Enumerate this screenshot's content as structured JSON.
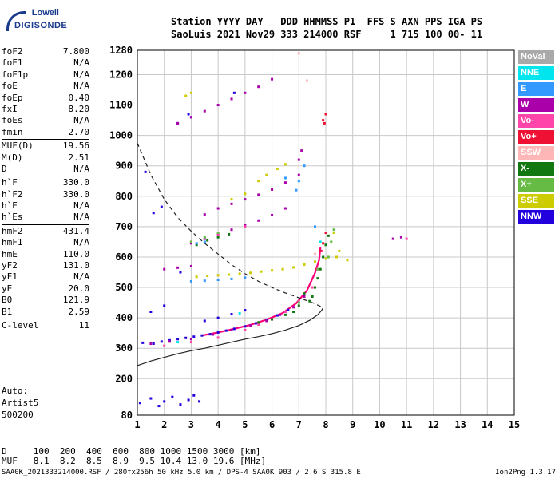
{
  "logo": {
    "brand_top": "Lowell",
    "brand_bottom": "DIGISONDE"
  },
  "header": {
    "line1": "Station YYYY DAY   DDD HHMMSS P1  FFS S AXN PPS IGA PS",
    "line2": "SaoLuis 2021 Nov29 333 214000 RSF     1 715 100 00- 11"
  },
  "params": [
    {
      "name": "foF2",
      "value": "7.800"
    },
    {
      "name": "foF1",
      "value": "N/A"
    },
    {
      "name": "foF1p",
      "value": "N/A"
    },
    {
      "name": "foE",
      "value": "N/A"
    },
    {
      "name": "foEp",
      "value": "0.40"
    },
    {
      "name": "fxI",
      "value": "8.20"
    },
    {
      "name": "foEs",
      "value": "N/A"
    },
    {
      "name": "fmin",
      "value": "2.70"
    },
    {
      "name": "MUF(D)",
      "value": "19.56"
    },
    {
      "name": "M(D)",
      "value": "2.51"
    },
    {
      "name": "D",
      "value": "N/A"
    },
    {
      "name": "h`F",
      "value": "330.0"
    },
    {
      "name": "h`F2",
      "value": "330.0"
    },
    {
      "name": "h`E",
      "value": "N/A"
    },
    {
      "name": "h`Es",
      "value": "N/A"
    },
    {
      "name": "hmF2",
      "value": "431.4"
    },
    {
      "name": "hmF1",
      "value": "N/A"
    },
    {
      "name": "hmE",
      "value": "110.0"
    },
    {
      "name": "yF2",
      "value": "131.0"
    },
    {
      "name": "yF1",
      "value": "N/A"
    },
    {
      "name": "yE",
      "value": "20.0"
    },
    {
      "name": "B0",
      "value": "121.9"
    },
    {
      "name": "B1",
      "value": "2.59"
    },
    {
      "name": "C-level",
      "value": "11"
    }
  ],
  "auto": {
    "line1": "Auto:",
    "line2": "Artist5",
    "line3": "500200"
  },
  "distance_table": {
    "d_row": "D     100  200  400  600  800 1000 1500 3000 [km]",
    "muf_row": "MUF   8.1  8.2  8.5  8.9  9.5 10.4 13.0 19.6 [MHz]"
  },
  "footer": {
    "left": "SAA0K_2021333214000.RSF / 280fx256h 50 kHz 5.0 km / DPS-4 SAA0K 903 / 2.6 S 315.8 E",
    "right": "Ion2Png 1.3.17"
  },
  "legend": [
    {
      "label": "NoVal",
      "color": "#a9a9a9"
    },
    {
      "label": "NNE",
      "color": "#00e5ee"
    },
    {
      "label": "E",
      "color": "#3399ff"
    },
    {
      "label": "W",
      "color": "#aa00aa"
    },
    {
      "label": "Vo-",
      "color": "#ff44aa"
    },
    {
      "label": "Vo+",
      "color": "#ee1133"
    },
    {
      "label": "SSW",
      "color": "#ffb6b6"
    },
    {
      "label": "X-",
      "color": "#117711"
    },
    {
      "label": "X+",
      "color": "#66bb44"
    },
    {
      "label": "SSE",
      "color": "#cccc00"
    },
    {
      "label": "NNW",
      "color": "#2200dd"
    }
  ],
  "chart_data": {
    "type": "scatter",
    "xlim": [
      1,
      15
    ],
    "ylim": [
      80,
      1280
    ],
    "xticks": [
      1,
      2,
      3,
      4,
      5,
      6,
      7,
      8,
      9,
      10,
      11,
      12,
      13,
      14,
      15
    ],
    "yticks": [
      80,
      200,
      300,
      400,
      500,
      600,
      700,
      800,
      900,
      1000,
      1100,
      1200,
      1280
    ],
    "grid": true,
    "legend_position": "right",
    "clusters": [
      {
        "name": "NNW",
        "color": "#2200dd",
        "points": [
          [
            1.1,
            120
          ],
          [
            1.5,
            135
          ],
          [
            1.8,
            110
          ],
          [
            2.0,
            125
          ],
          [
            2.3,
            140
          ],
          [
            2.6,
            115
          ],
          [
            2.9,
            130
          ],
          [
            3.1,
            145
          ],
          [
            3.3,
            125
          ],
          [
            1.2,
            318
          ],
          [
            1.6,
            315
          ],
          [
            1.9,
            322
          ],
          [
            2.2,
            326
          ],
          [
            2.5,
            330
          ],
          [
            2.8,
            334
          ],
          [
            3.1,
            338
          ],
          [
            3.4,
            342
          ],
          [
            3.7,
            346
          ],
          [
            4.0,
            352
          ],
          [
            4.3,
            358
          ],
          [
            4.6,
            364
          ],
          [
            5.0,
            372
          ],
          [
            5.4,
            382
          ],
          [
            5.8,
            394
          ],
          [
            6.2,
            408
          ],
          [
            6.6,
            426
          ],
          [
            3.5,
            390
          ],
          [
            4.0,
            400
          ],
          [
            4.5,
            412
          ],
          [
            5.0,
            425
          ],
          [
            1.5,
            420
          ],
          [
            2.0,
            440
          ],
          [
            2.6,
            550
          ],
          [
            1.6,
            745
          ],
          [
            1.9,
            765
          ],
          [
            1.3,
            880
          ],
          [
            2.5,
            1040
          ],
          [
            3.0,
            1060
          ],
          [
            2.9,
            1070
          ],
          [
            4.6,
            1140
          ]
        ]
      },
      {
        "name": "W",
        "color": "#aa00aa",
        "points": [
          [
            1.5,
            315
          ],
          [
            2.2,
            322
          ],
          [
            3.0,
            330
          ],
          [
            3.8,
            345
          ],
          [
            4.5,
            360
          ],
          [
            5.2,
            375
          ],
          [
            5.8,
            390
          ],
          [
            6.3,
            410
          ],
          [
            6.8,
            435
          ],
          [
            7.2,
            470
          ],
          [
            3.0,
            645
          ],
          [
            3.5,
            660
          ],
          [
            4.0,
            675
          ],
          [
            4.5,
            690
          ],
          [
            5.0,
            705
          ],
          [
            5.5,
            720
          ],
          [
            6.0,
            738
          ],
          [
            6.5,
            760
          ],
          [
            3.5,
            740
          ],
          [
            4.0,
            760
          ],
          [
            4.5,
            775
          ],
          [
            5.0,
            790
          ],
          [
            5.5,
            805
          ],
          [
            6.0,
            822
          ],
          [
            6.5,
            845
          ],
          [
            7.0,
            870
          ],
          [
            2.5,
            1040
          ],
          [
            3.0,
            1060
          ],
          [
            3.5,
            1080
          ],
          [
            4.0,
            1100
          ],
          [
            4.5,
            1120
          ],
          [
            5.0,
            1140
          ],
          [
            5.5,
            1160
          ],
          [
            6.0,
            1185
          ],
          [
            2.0,
            560
          ],
          [
            2.5,
            565
          ],
          [
            3.0,
            570
          ],
          [
            7.0,
            920
          ],
          [
            7.1,
            950
          ],
          [
            10.5,
            660
          ],
          [
            10.8,
            665
          ]
        ]
      },
      {
        "name": "Vo-",
        "color": "#ff44aa",
        "points": [
          [
            2.0,
            308
          ],
          [
            3.0,
            320
          ],
          [
            4.0,
            335
          ],
          [
            5.0,
            360
          ],
          [
            5.5,
            378
          ],
          [
            6.0,
            395
          ],
          [
            6.5,
            420
          ],
          [
            7.0,
            455
          ],
          [
            7.5,
            500
          ],
          [
            7.7,
            560
          ],
          [
            7.85,
            620
          ],
          [
            3.0,
            650
          ],
          [
            4.0,
            672
          ],
          [
            5.0,
            700
          ],
          [
            11.0,
            660
          ]
        ]
      },
      {
        "name": "Vo+",
        "color": "#ee1133",
        "points": [
          [
            7.8,
            620
          ],
          [
            7.9,
            645
          ],
          [
            8.0,
            680
          ],
          [
            7.9,
            1050
          ],
          [
            8.0,
            1070
          ],
          [
            7.95,
            1040
          ]
        ]
      },
      {
        "name": "X-",
        "color": "#117711",
        "points": [
          [
            3.2,
            640
          ],
          [
            3.6,
            655
          ],
          [
            4.0,
            665
          ],
          [
            4.4,
            675
          ],
          [
            7.5,
            470
          ],
          [
            7.6,
            500
          ],
          [
            7.7,
            530
          ],
          [
            7.8,
            560
          ],
          [
            7.9,
            600
          ],
          [
            8.0,
            640
          ],
          [
            8.1,
            670
          ],
          [
            7.2,
            480
          ],
          [
            5.5,
            385
          ],
          [
            6.0,
            395
          ],
          [
            6.5,
            410
          ],
          [
            6.8,
            420
          ],
          [
            7.0,
            440
          ],
          [
            7.4,
            455
          ]
        ]
      },
      {
        "name": "X+",
        "color": "#66bb44",
        "points": [
          [
            3.0,
            650
          ],
          [
            3.5,
            665
          ],
          [
            4.0,
            680
          ],
          [
            8.1,
            600
          ],
          [
            8.2,
            650
          ],
          [
            8.3,
            690
          ],
          [
            7.7,
            560
          ],
          [
            7.0,
            450
          ]
        ]
      },
      {
        "name": "SSE",
        "color": "#cccc00",
        "points": [
          [
            3.2,
            535
          ],
          [
            3.6,
            538
          ],
          [
            4.0,
            540
          ],
          [
            4.4,
            542
          ],
          [
            4.8,
            545
          ],
          [
            5.2,
            548
          ],
          [
            5.6,
            552
          ],
          [
            6.0,
            556
          ],
          [
            6.4,
            560
          ],
          [
            6.8,
            566
          ],
          [
            7.2,
            575
          ],
          [
            7.6,
            585
          ],
          [
            8.0,
            595
          ],
          [
            8.4,
            600
          ],
          [
            8.8,
            590
          ],
          [
            5.5,
            850
          ],
          [
            5.8,
            870
          ],
          [
            6.2,
            890
          ],
          [
            6.5,
            905
          ],
          [
            4.5,
            790
          ],
          [
            5.0,
            808
          ],
          [
            2.8,
            1130
          ],
          [
            3.0,
            1140
          ],
          [
            8.3,
            680
          ],
          [
            8.5,
            620
          ]
        ]
      },
      {
        "name": "E",
        "color": "#3399ff",
        "points": [
          [
            3.0,
            520
          ],
          [
            3.5,
            522
          ],
          [
            4.0,
            525
          ],
          [
            4.5,
            528
          ],
          [
            5.0,
            532
          ],
          [
            3.2,
            645
          ],
          [
            3.5,
            650
          ],
          [
            6.9,
            820
          ],
          [
            7.0,
            850
          ],
          [
            6.5,
            860
          ],
          [
            7.2,
            900
          ],
          [
            7.6,
            700
          ]
        ]
      },
      {
        "name": "NNE",
        "color": "#00e5ee",
        "points": [
          [
            2.5,
            320
          ],
          [
            4.8,
            415
          ],
          [
            7.8,
            650
          ]
        ]
      },
      {
        "name": "SSW",
        "color": "#ffb6b6",
        "points": [
          [
            7.3,
            1180
          ],
          [
            7.0,
            1270
          ],
          [
            7.6,
            610
          ]
        ]
      }
    ],
    "trace_lines": [
      {
        "name": "virtual_height_trace",
        "color": "#ff0077",
        "points": [
          [
            3.4,
            342
          ],
          [
            4.0,
            352
          ],
          [
            4.6,
            364
          ],
          [
            5.2,
            377
          ],
          [
            5.8,
            394
          ],
          [
            6.4,
            416
          ],
          [
            6.9,
            448
          ],
          [
            7.3,
            490
          ],
          [
            7.6,
            548
          ],
          [
            7.75,
            590
          ],
          [
            7.8,
            632
          ]
        ]
      },
      {
        "name": "true_height_profile",
        "color": "#222222",
        "dashed": false,
        "points": [
          [
            1.0,
            243
          ],
          [
            1.5,
            258
          ],
          [
            2.0,
            270
          ],
          [
            2.5,
            282
          ],
          [
            3.0,
            292
          ],
          [
            3.5,
            300
          ],
          [
            4.0,
            310
          ],
          [
            4.5,
            320
          ],
          [
            5.0,
            330
          ],
          [
            5.5,
            338
          ],
          [
            6.0,
            348
          ],
          [
            6.5,
            360
          ],
          [
            7.0,
            375
          ],
          [
            7.4,
            392
          ],
          [
            7.7,
            410
          ],
          [
            7.85,
            425
          ],
          [
            7.9,
            433
          ]
        ]
      },
      {
        "name": "profile_upper",
        "color": "#222222",
        "dashed": true,
        "points": [
          [
            1.0,
            975
          ],
          [
            1.5,
            870
          ],
          [
            2.0,
            790
          ],
          [
            2.5,
            730
          ],
          [
            3.0,
            685
          ],
          [
            3.5,
            645
          ],
          [
            4.0,
            610
          ],
          [
            4.5,
            575
          ],
          [
            5.0,
            545
          ],
          [
            5.5,
            520
          ],
          [
            6.0,
            500
          ],
          [
            6.5,
            482
          ],
          [
            7.0,
            466
          ],
          [
            7.5,
            450
          ],
          [
            7.8,
            438
          ],
          [
            7.9,
            433
          ]
        ]
      }
    ]
  }
}
